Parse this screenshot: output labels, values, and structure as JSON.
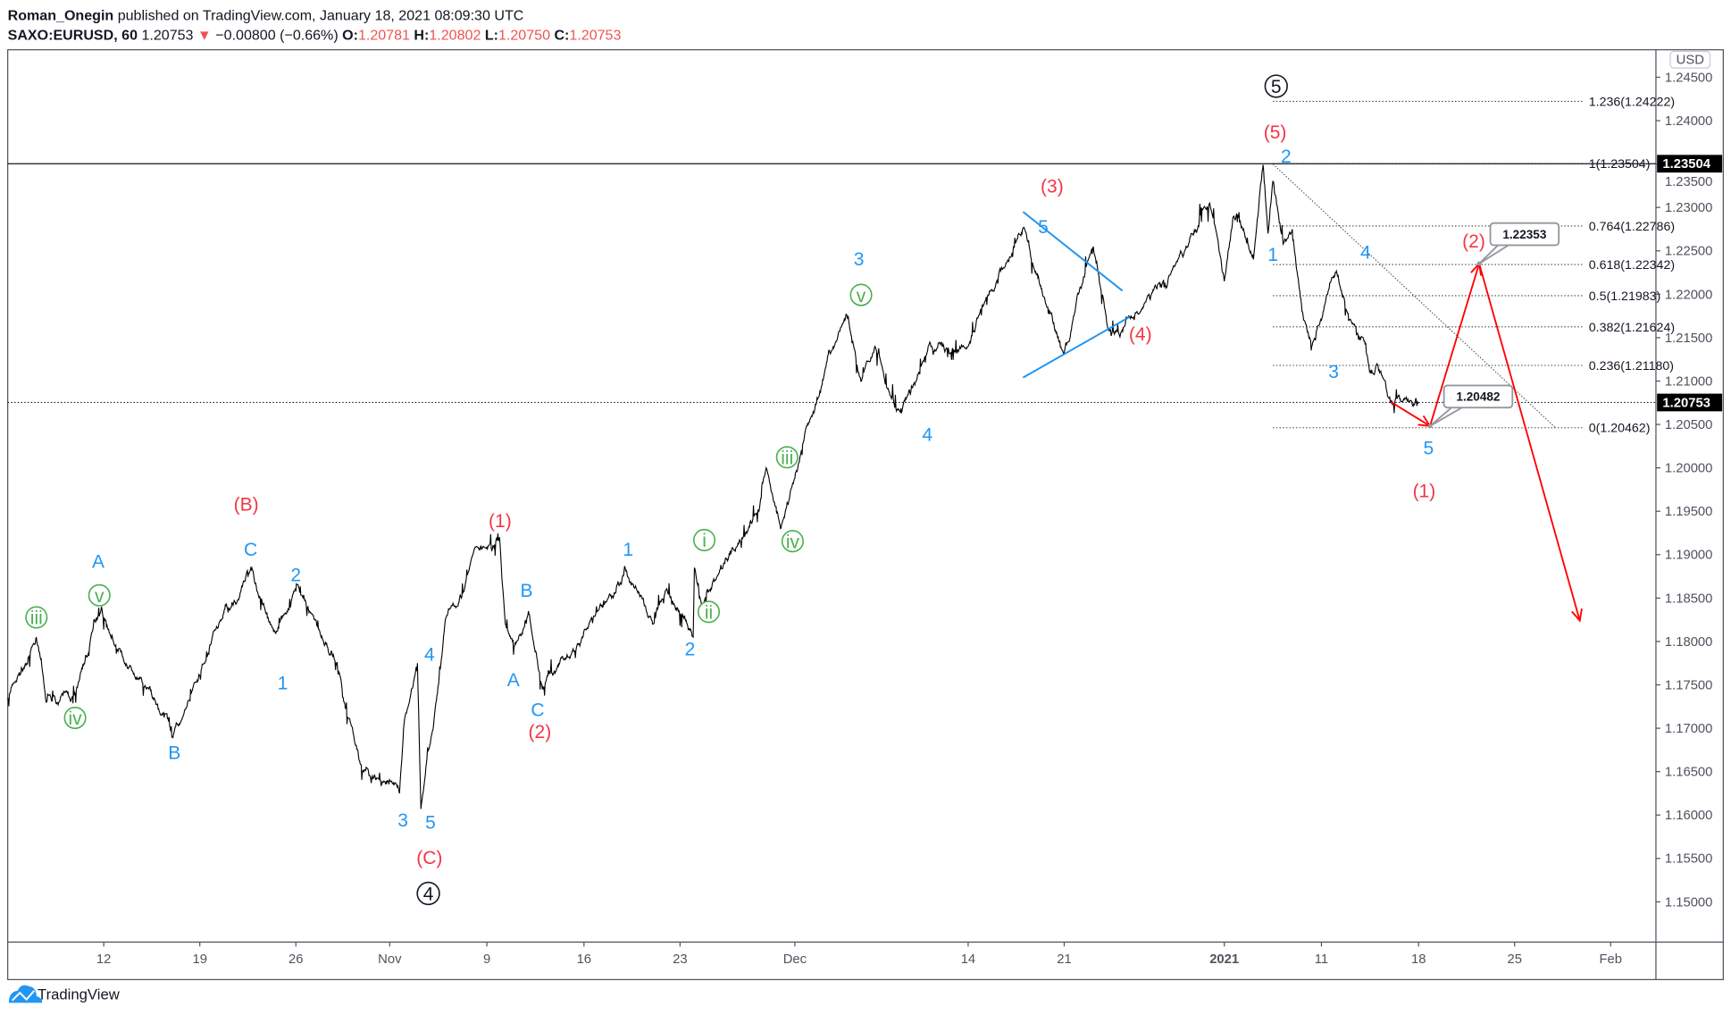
{
  "header": {
    "author": "Roman_Onegin",
    "published": " published on TradingView.com, January 18, 2021 08:09:30 UTC",
    "symbol": "SAXO:EURUSD, 60",
    "last": " 1.20753",
    "change": " −0.00800 (−0.66%) ",
    "o_label": "O:",
    "o": "1.20781",
    "h_label": " H:",
    "h": "1.20802",
    "l_label": " L:",
    "l": "1.20750",
    "c_label": " C:",
    "c": "1.20753"
  },
  "currency_button": "USD",
  "footer": {
    "brand": "TradingView",
    "logo_icon": "tradingview-cloud-icon"
  },
  "colors": {
    "wave_blue": "#2196f3",
    "wave_red": "#f23645",
    "wave_green": "#4caf50",
    "arrow_red": "#ff0000",
    "down_red": "#ef5350"
  },
  "chart_data": {
    "type": "line",
    "symbol": "SAXO:EURUSD",
    "interval": "60",
    "ylim": [
      1.145,
      1.2475
    ],
    "y_ticks": [
      "1.24500",
      "1.24000",
      "1.23500",
      "1.23000",
      "1.22500",
      "1.22000",
      "1.21500",
      "1.21000",
      "1.20500",
      "1.20000",
      "1.19500",
      "1.19000",
      "1.18500",
      "1.18000",
      "1.17500",
      "1.17000",
      "1.16500",
      "1.16000",
      "1.15500",
      "1.15000"
    ],
    "x_ticks": [
      {
        "label": "12",
        "date": "2020-10-12"
      },
      {
        "label": "19",
        "date": "2020-10-19"
      },
      {
        "label": "26",
        "date": "2020-10-26"
      },
      {
        "label": "Nov",
        "date": "2020-11-02"
      },
      {
        "label": "9",
        "date": "2020-11-09"
      },
      {
        "label": "16",
        "date": "2020-11-16"
      },
      {
        "label": "23",
        "date": "2020-11-23"
      },
      {
        "label": "Dec",
        "date": "2020-12-01"
      },
      {
        "label": "14",
        "date": "2020-12-14"
      },
      {
        "label": "21",
        "date": "2020-12-21"
      },
      {
        "label": "2021",
        "date": "2021-01-01",
        "bold": true
      },
      {
        "label": "11",
        "date": "2021-01-11"
      },
      {
        "label": "18",
        "date": "2021-01-18"
      },
      {
        "label": "25",
        "date": "2021-01-25"
      },
      {
        "label": "Feb",
        "date": "2021-02-01"
      }
    ],
    "price_path": [
      [
        "2020-10-05",
        1.1735
      ],
      [
        "2020-10-07 02:00",
        1.1805
      ],
      [
        "2020-10-07 19:00",
        1.173
      ],
      [
        "2020-10-09 22:00",
        1.174
      ],
      [
        "2020-10-11 20:00",
        1.1835
      ],
      [
        "2020-10-14",
        1.177
      ],
      [
        "2020-10-17",
        1.169
      ],
      [
        "2020-10-19 08:00",
        1.1775
      ],
      [
        "2020-10-22 19:00",
        1.1885
      ],
      [
        "2020-10-24 12:00",
        1.181
      ],
      [
        "2020-10-26",
        1.1865
      ],
      [
        "2020-10-28 19:00",
        1.1785
      ],
      [
        "2020-10-31",
        1.165
      ],
      [
        "2020-11-02 17:00",
        1.1625
      ],
      [
        "2020-11-03",
        1.17
      ],
      [
        "2020-11-04",
        1.1775
      ],
      [
        "2020-11-04 06:00",
        1.1607
      ],
      [
        "2020-11-06",
        1.1824
      ],
      [
        "2020-11-08",
        1.19
      ],
      [
        "2020-11-09 22:00",
        1.192
      ],
      [
        "2020-11-10 08:00",
        1.182
      ],
      [
        "2020-11-11",
        1.1795
      ],
      [
        "2020-11-12",
        1.1835
      ],
      [
        "2020-11-13",
        1.1745
      ],
      [
        "2020-11-14 12:00",
        1.178
      ],
      [
        "2020-11-18",
        1.185
      ],
      [
        "2020-11-19",
        1.1885
      ],
      [
        "2020-11-21",
        1.182
      ],
      [
        "2020-11-22",
        1.186
      ],
      [
        "2020-11-23 22:00",
        1.1805
      ],
      [
        "2020-11-24",
        1.1885
      ],
      [
        "2020-11-24 12:00",
        1.184
      ],
      [
        "2020-11-27",
        1.191
      ],
      [
        "2020-11-28 12:00",
        1.195
      ],
      [
        "2020-11-29",
        1.2
      ],
      [
        "2020-11-30",
        1.193
      ],
      [
        "2020-12-02",
        1.205
      ],
      [
        "2020-12-03 12:00",
        1.213
      ],
      [
        "2020-12-05",
        1.2175
      ],
      [
        "2020-12-06",
        1.21
      ],
      [
        "2020-12-07",
        1.214
      ],
      [
        "2020-12-09",
        1.2063
      ],
      [
        "2020-12-11",
        1.214
      ],
      [
        "2020-12-14",
        1.214
      ],
      [
        "2020-12-16",
        1.221
      ],
      [
        "2020-12-18",
        1.2276
      ],
      [
        "2020-12-21",
        1.2132
      ],
      [
        "2020-12-23",
        1.2255
      ],
      [
        "2020-12-24",
        1.216
      ],
      [
        "2020-12-26",
        1.218
      ],
      [
        "2020-12-29",
        1.225
      ],
      [
        "2020-12-31",
        1.2305
      ],
      [
        "2021-01-01",
        1.2215
      ],
      [
        "2021-01-02",
        1.229
      ],
      [
        "2021-01-04",
        1.224
      ],
      [
        "2021-01-05",
        1.2349
      ],
      [
        "2021-01-05 12:00",
        1.227
      ],
      [
        "2021-01-06",
        1.233
      ],
      [
        "2021-01-07",
        1.226
      ],
      [
        "2021-01-08",
        1.2275
      ],
      [
        "2021-01-09",
        1.218
      ],
      [
        "2021-01-10",
        1.214
      ],
      [
        "2021-01-11",
        1.217
      ],
      [
        "2021-01-12",
        1.2225
      ],
      [
        "2021-01-13",
        1.217
      ],
      [
        "2021-01-14",
        1.215
      ],
      [
        "2021-01-14 12:00",
        1.211
      ],
      [
        "2021-01-15",
        1.212
      ],
      [
        "2021-01-16",
        1.2075
      ],
      [
        "2021-01-18",
        1.20753
      ]
    ],
    "horizontal_lines": [
      {
        "price": 1.23504,
        "style": "solid",
        "badge": "1.23504"
      },
      {
        "price": 1.20753,
        "style": "dotted",
        "badge": "1.20753"
      }
    ],
    "fibonacci": {
      "from_date": "2021-01-06",
      "to_date": "2021-01-30",
      "levels": [
        {
          "price": 1.24222,
          "label": "1.236(1.24222)"
        },
        {
          "price": 1.23504,
          "label": "1(1.23504)"
        },
        {
          "price": 1.22786,
          "label": "0.764(1.22786)"
        },
        {
          "price": 1.22342,
          "label": "0.618(1.22342)"
        },
        {
          "price": 1.21983,
          "label": "0.5(1.21983)"
        },
        {
          "price": 1.21624,
          "label": "0.382(1.21624)"
        },
        {
          "price": 1.2118,
          "label": "0.236(1.21180)"
        },
        {
          "price": 1.20462,
          "label": "0(1.20462)"
        }
      ]
    },
    "trendline": [
      [
        "2021-01-06",
        1.235
      ],
      [
        "2021-01-28",
        1.2046
      ]
    ],
    "triangle": [
      [
        [
          "2020-12-18",
          1.2295
        ],
        [
          "2020-12-25",
          1.2204
        ]
      ],
      [
        [
          "2020-12-18",
          1.2104
        ],
        [
          "2020-12-25 12:00",
          1.2174
        ]
      ]
    ],
    "projection": [
      [
        "2021-01-16",
        1.2076
      ],
      [
        "2021-01-18 20:00",
        1.20482
      ],
      [
        "2021-01-22 10:00",
        1.22353
      ],
      [
        "2021-01-29 18:00",
        1.1824
      ]
    ],
    "callouts": [
      "1.22353",
      "1.20482"
    ],
    "wave_labels": [
      {
        "text": "iii",
        "color": "green",
        "circled": true
      },
      {
        "text": "iv",
        "color": "green",
        "circled": true
      },
      {
        "text": "v",
        "color": "green",
        "circled": true
      },
      {
        "text": "i",
        "color": "green",
        "circled": true
      },
      {
        "text": "ii",
        "color": "green",
        "circled": true
      },
      {
        "text": "iii",
        "color": "green",
        "circled": true
      },
      {
        "text": "iv",
        "color": "green",
        "circled": true
      },
      {
        "text": "v",
        "color": "green",
        "circled": true
      },
      {
        "text": "A",
        "color": "blue"
      },
      {
        "text": "B",
        "color": "blue"
      },
      {
        "text": "C",
        "color": "blue"
      },
      {
        "text": "1",
        "color": "blue"
      },
      {
        "text": "2",
        "color": "blue"
      },
      {
        "text": "3",
        "color": "blue"
      },
      {
        "text": "4",
        "color": "blue"
      },
      {
        "text": "5",
        "color": "blue"
      },
      {
        "text": "B",
        "color": "blue"
      },
      {
        "text": "A",
        "color": "blue"
      },
      {
        "text": "C",
        "color": "blue"
      },
      {
        "text": "1",
        "color": "blue"
      },
      {
        "text": "2",
        "color": "blue"
      },
      {
        "text": "3",
        "color": "blue"
      },
      {
        "text": "4",
        "color": "blue"
      },
      {
        "text": "5",
        "color": "blue"
      },
      {
        "text": "1",
        "color": "blue"
      },
      {
        "text": "2",
        "color": "blue"
      },
      {
        "text": "3",
        "color": "blue"
      },
      {
        "text": "4",
        "color": "blue"
      },
      {
        "text": "5",
        "color": "blue"
      },
      {
        "text": "(B)",
        "color": "red"
      },
      {
        "text": "(1)",
        "color": "red"
      },
      {
        "text": "(2)",
        "color": "red"
      },
      {
        "text": "(C)",
        "color": "red"
      },
      {
        "text": "(3)",
        "color": "red"
      },
      {
        "text": "(4)",
        "color": "red"
      },
      {
        "text": "(5)",
        "color": "red"
      },
      {
        "text": "(2)",
        "color": "red"
      },
      {
        "text": "(1)",
        "color": "red"
      },
      {
        "text": "4",
        "color": "black",
        "circled": true
      },
      {
        "text": "5",
        "color": "black",
        "circled": true
      }
    ]
  }
}
